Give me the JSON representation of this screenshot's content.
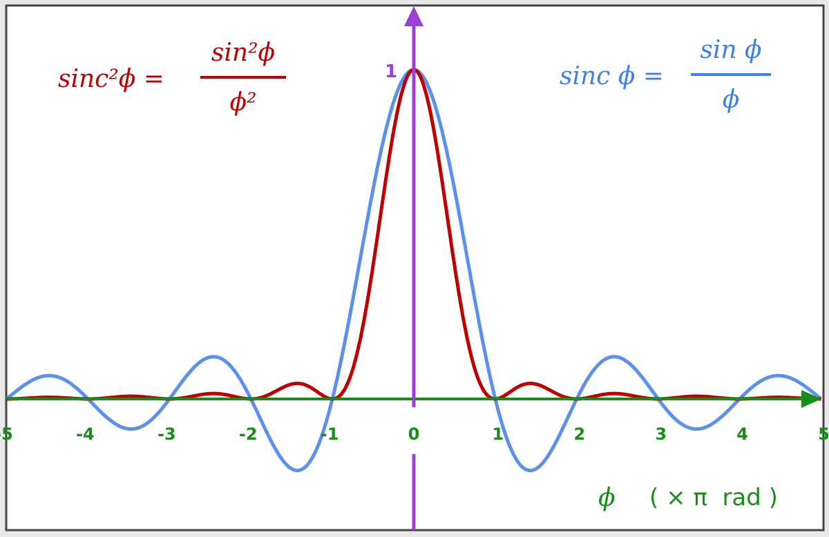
{
  "chart_data": {
    "type": "line",
    "xlabel_symbol": "ϕ",
    "xlabel_unit": "( × π  rad )",
    "xlim": [
      -5,
      5
    ],
    "ylim": [
      -0.25,
      1
    ],
    "x_ticks": [
      "-5",
      "-4",
      "-3",
      "-2",
      "-1",
      "0",
      "1",
      "2",
      "3",
      "4",
      "5"
    ],
    "y_tick_label": "1",
    "grid": false,
    "x": [
      -5,
      -4.5,
      -4,
      -3.5,
      -3,
      -2.5,
      -2,
      -1.5,
      -1,
      -0.5,
      0,
      0.5,
      1,
      1.5,
      2,
      2.5,
      3,
      3.5,
      4,
      4.5,
      5
    ],
    "series": [
      {
        "name": "sinc ϕ = sin ϕ / ϕ",
        "label_lhs": "sinc ϕ =",
        "label_num": "sin ϕ",
        "label_den": "ϕ",
        "color": "#5b8ff0",
        "values": [
          0,
          0.0707,
          0,
          -0.0909,
          0,
          0.1273,
          0,
          -0.2122,
          0,
          0.6366,
          1,
          0.6366,
          0,
          -0.2122,
          0,
          0.1273,
          0,
          -0.0909,
          0,
          0.0707,
          0
        ]
      },
      {
        "name": "sinc²ϕ = sin²ϕ / ϕ²",
        "label_lhs": "sinc²ϕ =",
        "label_num": "sin²ϕ",
        "label_den": "ϕ²",
        "color": "#c00000",
        "values": [
          0,
          0.005,
          0,
          0.0083,
          0,
          0.0162,
          0,
          0.045,
          0,
          0.4053,
          1,
          0.4053,
          0,
          0.045,
          0,
          0.0162,
          0,
          0.0083,
          0,
          0.005,
          0
        ]
      }
    ],
    "x_axis_color": "#1a8c1a",
    "y_axis_color": "#9b3fd6"
  }
}
